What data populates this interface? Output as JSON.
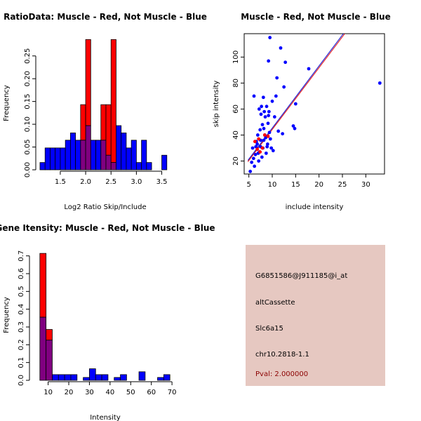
{
  "colors": {
    "red": "#ff0000",
    "blue": "#0000ff",
    "purple": "#800080",
    "dark_red": "#8b0000",
    "panel_bg": "#e6c8c1",
    "line_red": "#e00000",
    "line_blue": "#0000cc"
  },
  "chart_data": [
    {
      "type": "bar",
      "id": "ratio",
      "title": "RatioData: Muscle - Red, Not Muscle - Blue",
      "xlabel": "Log2 Ratio Skip/Include",
      "ylabel": "Frequency",
      "xlim": [
        1.1,
        3.7
      ],
      "ylim": [
        0,
        0.285
      ],
      "xticks": [
        1.5,
        2.0,
        2.5,
        3.0,
        3.5
      ],
      "xtick_labels": [
        "1.5",
        "2.0",
        "2.5",
        "3.0",
        "3.5"
      ],
      "yticks": [
        0,
        0.05,
        0.1,
        0.15,
        0.2,
        0.25
      ],
      "ytick_labels": [
        "0.00",
        "0.05",
        "0.10",
        "0.15",
        "0.20",
        "0.25"
      ],
      "bin_width": 0.1,
      "series": [
        {
          "name": "Muscle",
          "color": "red",
          "bins": [
            {
              "x": 1.9,
              "y": 0.143
            },
            {
              "x": 2.0,
              "y": 0.286
            },
            {
              "x": 2.3,
              "y": 0.143
            },
            {
              "x": 2.4,
              "y": 0.143
            },
            {
              "x": 2.5,
              "y": 0.286
            }
          ]
        },
        {
          "name": "Not Muscle",
          "color": "blue",
          "bins": [
            {
              "x": 1.1,
              "y": 0.016
            },
            {
              "x": 1.2,
              "y": 0.048
            },
            {
              "x": 1.3,
              "y": 0.048
            },
            {
              "x": 1.4,
              "y": 0.048
            },
            {
              "x": 1.5,
              "y": 0.048
            },
            {
              "x": 1.6,
              "y": 0.065
            },
            {
              "x": 1.7,
              "y": 0.081
            },
            {
              "x": 1.8,
              "y": 0.065
            },
            {
              "x": 1.9,
              "y": 0.065
            },
            {
              "x": 2.0,
              "y": 0.097
            },
            {
              "x": 2.1,
              "y": 0.065
            },
            {
              "x": 2.2,
              "y": 0.065
            },
            {
              "x": 2.3,
              "y": 0.065
            },
            {
              "x": 2.4,
              "y": 0.032
            },
            {
              "x": 2.5,
              "y": 0.016
            },
            {
              "x": 2.6,
              "y": 0.097
            },
            {
              "x": 2.7,
              "y": 0.081
            },
            {
              "x": 2.8,
              "y": 0.048
            },
            {
              "x": 2.9,
              "y": 0.065
            },
            {
              "x": 3.0,
              "y": 0.016
            },
            {
              "x": 3.1,
              "y": 0.065
            },
            {
              "x": 3.2,
              "y": 0.016
            },
            {
              "x": 3.5,
              "y": 0.032
            }
          ]
        }
      ]
    },
    {
      "type": "scatter",
      "id": "scatter",
      "title": "Muscle - Red, Not Muscle - Blue",
      "xlabel": "include intensity",
      "ylabel": "skip intensity",
      "xlim": [
        4,
        34
      ],
      "ylim": [
        10,
        118
      ],
      "xticks": [
        5,
        10,
        15,
        20,
        25,
        30
      ],
      "yticks": [
        20,
        40,
        60,
        80,
        100
      ],
      "series": [
        {
          "name": "Not Muscle",
          "color": "blue",
          "points": [
            [
              5.3,
              12
            ],
            [
              5.6,
              19
            ],
            [
              6.0,
              22
            ],
            [
              5.8,
              30
            ],
            [
              6.2,
              16
            ],
            [
              6.4,
              25
            ],
            [
              6.5,
              31
            ],
            [
              6.1,
              70
            ],
            [
              6.8,
              33
            ],
            [
              7.0,
              26
            ],
            [
              6.9,
              40
            ],
            [
              7.2,
              60
            ],
            [
              7.3,
              27
            ],
            [
              7.1,
              20
            ],
            [
              7.5,
              36
            ],
            [
              7.4,
              44
            ],
            [
              7.6,
              56
            ],
            [
              7.7,
              62
            ],
            [
              7.8,
              23
            ],
            [
              8.0,
              30
            ],
            [
              7.9,
              48
            ],
            [
              8.1,
              69
            ],
            [
              8.2,
              36
            ],
            [
              8.3,
              58
            ],
            [
              8.4,
              40
            ],
            [
              8.5,
              54
            ],
            [
              8.6,
              38
            ],
            [
              8.7,
              26
            ],
            [
              8.8,
              62
            ],
            [
              8.9,
              31
            ],
            [
              9.0,
              33
            ],
            [
              9.1,
              49
            ],
            [
              9.2,
              55
            ],
            [
              9.3,
              58
            ],
            [
              9.4,
              42
            ],
            [
              9.2,
              97
            ],
            [
              9.5,
              115
            ],
            [
              9.8,
              30
            ],
            [
              10.0,
              66
            ],
            [
              10.2,
              28
            ],
            [
              10.5,
              54
            ],
            [
              10.8,
              70
            ],
            [
              11.0,
              84
            ],
            [
              11.3,
              43
            ],
            [
              11.8,
              107
            ],
            [
              12.2,
              41
            ],
            [
              12.5,
              77
            ],
            [
              12.8,
              96
            ],
            [
              14.5,
              47
            ],
            [
              14.8,
              45
            ],
            [
              15.0,
              64
            ],
            [
              17.8,
              91
            ],
            [
              33.0,
              80
            ],
            [
              7.5,
              31
            ],
            [
              8.2,
              45
            ],
            [
              6.6,
              35
            ],
            [
              9.6,
              37
            ]
          ]
        },
        {
          "name": "Muscle",
          "color": "red",
          "points": [
            [
              6.3,
              35
            ],
            [
              6.8,
              29
            ],
            [
              7.1,
              37
            ],
            [
              7.4,
              27
            ],
            [
              7.9,
              30
            ],
            [
              8.4,
              40
            ],
            [
              9.1,
              39
            ]
          ]
        }
      ],
      "fit_lines": [
        {
          "color": "line_blue",
          "from": [
            4.8,
            20.5
          ],
          "to": [
            25.2,
            118
          ]
        },
        {
          "color": "line_red",
          "from": [
            4.8,
            19.5
          ],
          "to": [
            25.5,
            118
          ]
        }
      ]
    },
    {
      "type": "bar",
      "id": "intensity",
      "title": "Gene Itensity: Muscle - Red, Not Muscle - Blue",
      "xlabel": "Intensity",
      "ylabel": "Frequency",
      "xlim": [
        3,
        72
      ],
      "ylim": [
        0,
        0.75
      ],
      "xticks": [
        10,
        20,
        30,
        40,
        50,
        60,
        70
      ],
      "xtick_labels": [
        "10",
        "20",
        "30",
        "40",
        "50",
        "60",
        "70"
      ],
      "yticks": [
        0,
        0.1,
        0.2,
        0.3,
        0.4,
        0.5,
        0.6,
        0.7
      ],
      "ytick_labels": [
        "0.0",
        "0.1",
        "0.2",
        "0.3",
        "0.4",
        "0.5",
        "0.6",
        "0.7"
      ],
      "bin_width": 3,
      "series": [
        {
          "name": "Muscle",
          "color": "red",
          "bins": [
            {
              "x": 6,
              "y": 0.714
            },
            {
              "x": 9,
              "y": 0.286
            }
          ]
        },
        {
          "name": "Not Muscle",
          "color": "blue",
          "bins": [
            {
              "x": 6,
              "y": 0.355
            },
            {
              "x": 9,
              "y": 0.226
            },
            {
              "x": 12,
              "y": 0.032
            },
            {
              "x": 15,
              "y": 0.032
            },
            {
              "x": 18,
              "y": 0.032
            },
            {
              "x": 21,
              "y": 0.032
            },
            {
              "x": 27,
              "y": 0.016
            },
            {
              "x": 30,
              "y": 0.065
            },
            {
              "x": 33,
              "y": 0.032
            },
            {
              "x": 36,
              "y": 0.032
            },
            {
              "x": 42,
              "y": 0.016
            },
            {
              "x": 45,
              "y": 0.032
            },
            {
              "x": 54,
              "y": 0.048
            },
            {
              "x": 63,
              "y": 0.016
            },
            {
              "x": 66,
              "y": 0.032
            }
          ]
        }
      ]
    }
  ],
  "info_panel": {
    "probe_id": "G6851586@J911185@i_at",
    "event_type": "altCassette",
    "gene": "Slc6a15",
    "location": "chr10.2818-1.1",
    "pval": "Pval: 2.000000"
  }
}
